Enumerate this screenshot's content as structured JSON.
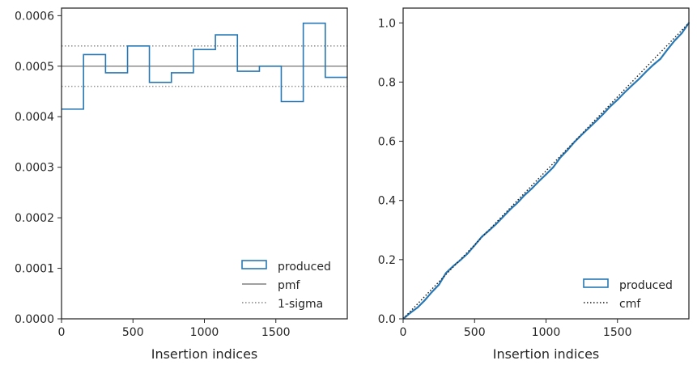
{
  "colors": {
    "produced": "#2878b5",
    "pmf": "#808080",
    "sigma": "#808080",
    "cmf": "#1a1a1a",
    "spine": "#262626"
  },
  "chart_data": [
    {
      "type": "histogram",
      "xlabel": "Insertion indices",
      "xlim": [
        0,
        2000
      ],
      "ylim": [
        0,
        0.000615
      ],
      "xticks": [
        0,
        500,
        1000,
        1500
      ],
      "xtick_labels": [
        "0",
        "500",
        "1000",
        "1500"
      ],
      "yticks": [
        0,
        0.0001,
        0.0002,
        0.0003,
        0.0004,
        0.0005,
        0.0006
      ],
      "ytick_labels": [
        "0.0000",
        "0.0001",
        "0.0002",
        "0.0003",
        "0.0004",
        "0.0005",
        "0.0006"
      ],
      "bin_edges": [
        0,
        154,
        308,
        462,
        615,
        769,
        923,
        1077,
        1231,
        1385,
        1538,
        1692,
        1846,
        2000
      ],
      "values": [
        0.000415,
        0.000523,
        0.000487,
        0.00054,
        0.000468,
        0.000487,
        0.000533,
        0.000562,
        0.00049,
        0.0005,
        0.00043,
        0.000585,
        0.000478
      ],
      "pmf": 0.0005,
      "sigma_lines": [
        0.00046,
        0.00054
      ],
      "legend": {
        "position": "lower-right",
        "entries": [
          {
            "label": "produced",
            "kind": "box",
            "color": "produced"
          },
          {
            "label": "pmf",
            "kind": "line",
            "color": "pmf"
          },
          {
            "label": "1-sigma",
            "kind": "dotted",
            "color": "sigma"
          }
        ]
      }
    },
    {
      "type": "line",
      "xlabel": "Insertion indices",
      "xlim": [
        0,
        2000
      ],
      "ylim": [
        0,
        1.05
      ],
      "xticks": [
        0,
        500,
        1000,
        1500
      ],
      "xtick_labels": [
        "0",
        "500",
        "1000",
        "1500"
      ],
      "yticks": [
        0,
        0.2,
        0.4,
        0.6,
        0.8,
        1.0
      ],
      "ytick_labels": [
        "0.0",
        "0.2",
        "0.4",
        "0.6",
        "0.8",
        "1.0"
      ],
      "series": [
        {
          "name": "produced",
          "style": "solid",
          "color": "produced",
          "x": [
            0,
            50,
            100,
            150,
            200,
            250,
            300,
            350,
            400,
            450,
            500,
            550,
            600,
            650,
            700,
            750,
            800,
            850,
            900,
            950,
            1000,
            1050,
            1100,
            1150,
            1200,
            1250,
            1300,
            1350,
            1400,
            1450,
            1500,
            1550,
            1600,
            1650,
            1700,
            1750,
            1800,
            1850,
            1900,
            1950,
            2000
          ],
          "y": [
            0.0,
            0.02,
            0.038,
            0.062,
            0.09,
            0.115,
            0.155,
            0.178,
            0.198,
            0.22,
            0.248,
            0.277,
            0.298,
            0.32,
            0.345,
            0.37,
            0.392,
            0.418,
            0.44,
            0.465,
            0.488,
            0.512,
            0.545,
            0.57,
            0.598,
            0.622,
            0.645,
            0.668,
            0.692,
            0.718,
            0.74,
            0.765,
            0.788,
            0.81,
            0.835,
            0.858,
            0.878,
            0.91,
            0.94,
            0.965,
            1.0
          ]
        },
        {
          "name": "cmf",
          "style": "dotted",
          "color": "cmf",
          "x": [
            0,
            2000
          ],
          "y": [
            0,
            1
          ]
        }
      ],
      "legend": {
        "position": "lower-right",
        "entries": [
          {
            "label": "produced",
            "kind": "box",
            "color": "produced"
          },
          {
            "label": "cmf",
            "kind": "dotted",
            "color": "cmf"
          }
        ]
      }
    }
  ]
}
